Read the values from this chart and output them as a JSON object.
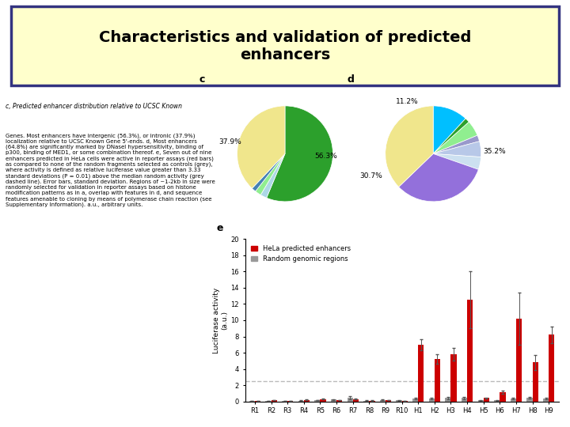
{
  "title": "Characteristics and validation of predicted\nenhancers",
  "title_bg": "#ffffcc",
  "title_border": "#333380",
  "pie_c_sizes": [
    56.3,
    2.2,
    2.1,
    1.5,
    37.9
  ],
  "pie_c_colors": [
    "#2ca02c",
    "#add8e6",
    "#90ee90",
    "#4682b4",
    "#f0e68c"
  ],
  "pie_d_sizes": [
    11.2,
    1.5,
    5.0,
    2.0,
    5.0,
    4.0,
    30.7,
    35.2
  ],
  "pie_d_colors": [
    "#00bfff",
    "#2ca02c",
    "#90ee90",
    "#9999cc",
    "#b8c8e8",
    "#cce0f0",
    "#9370db",
    "#f0e68c"
  ],
  "bar_categories": [
    "R1",
    "R2",
    "R3",
    "R4",
    "R5",
    "R6",
    "R7",
    "R8",
    "R9",
    "R10",
    "H1",
    "H2",
    "H3",
    "H4",
    "H5",
    "H6",
    "H7",
    "H8",
    "H9"
  ],
  "bar_hela": [
    0.05,
    0.15,
    0.05,
    0.2,
    0.3,
    0.15,
    0.3,
    0.1,
    0.15,
    0.08,
    7.0,
    5.2,
    5.8,
    12.5,
    0.4,
    1.1,
    10.2,
    4.8,
    8.2
  ],
  "bar_random": [
    0.05,
    0.05,
    0.04,
    0.1,
    0.15,
    0.25,
    0.45,
    0.1,
    0.2,
    0.12,
    0.35,
    0.35,
    0.4,
    0.4,
    0.12,
    0.15,
    0.35,
    0.45,
    0.35
  ],
  "bar_hela_err": [
    0.02,
    0.04,
    0.02,
    0.05,
    0.07,
    0.04,
    0.08,
    0.03,
    0.04,
    0.02,
    0.7,
    0.6,
    0.8,
    3.5,
    0.08,
    0.2,
    3.2,
    0.9,
    1.0
  ],
  "bar_random_err": [
    0.01,
    0.02,
    0.02,
    0.03,
    0.04,
    0.05,
    0.15,
    0.03,
    0.05,
    0.04,
    0.1,
    0.1,
    0.1,
    0.1,
    0.04,
    0.05,
    0.09,
    0.1,
    0.08
  ],
  "bar_hela_color": "#cc0000",
  "bar_random_color": "#999999",
  "bar_dashed_line": 2.5,
  "bar_ylim": [
    0,
    20
  ],
  "bar_yticks": [
    0,
    2,
    4,
    6,
    8,
    10,
    12,
    14,
    16,
    18,
    20
  ],
  "side_text_title": "c, Predicted enhancer distribution relative to UCSC Known",
  "side_text_body": "Genes. Most enhancers have intergenic (56.3%), or intronic (37.9%)\nlocalization relative to UCSC Known Gene 5'-ends. d, Most enhancers\n(64.8%) are significantly marked by DNasel hypersensitivity, binding of\np300, binding of MED1, or some combination thereof. e, Seven out of nine\nenhancers predicted in HeLa cells were active in reporter assays (red bars)\nas compared to none of the random fragments selected as controls (grey),\nwhere activity is defined as relative luciferase value greater than 3.33\nstandard deviations (P = 0.01) above the median random activity (grey\ndashed line). Error bars, standard deviation. Regions of ~1-2kb in size were\nrandomly selected for validation in reporter assays based on histone\nmodification patterns as in a, overlap with features in d, and sequence\nfeatures amenable to cloning by means of polymerase chain reaction (see\nSupplementary Information). a.u., arbitrary units."
}
